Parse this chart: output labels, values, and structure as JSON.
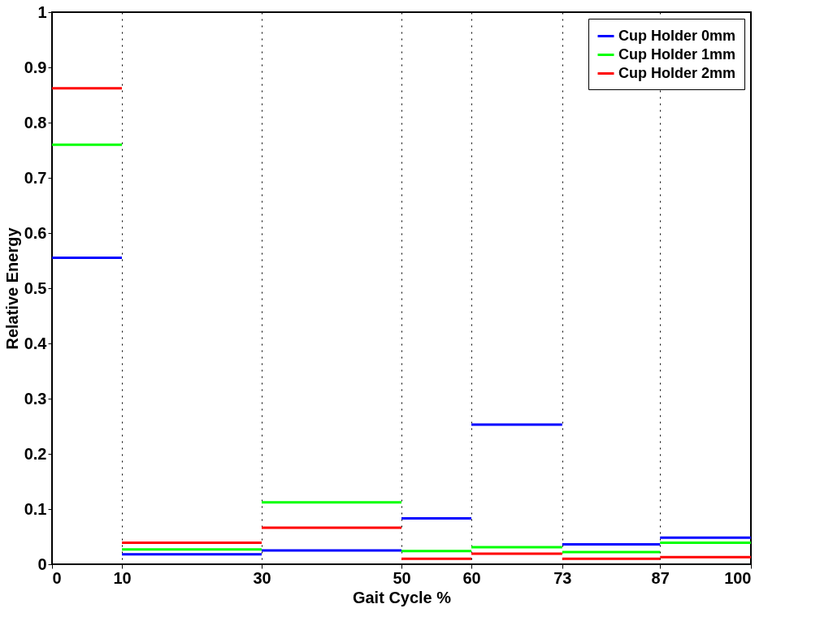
{
  "chart_data": {
    "type": "step",
    "xlabel": "Gait Cycle %",
    "ylabel": "Relative Energy",
    "x": [
      0,
      10,
      30,
      50,
      60,
      73,
      87,
      100
    ],
    "series": [
      {
        "name": "Cup Holder 0mm",
        "color": "#0000ff",
        "values": [
          0.555,
          0.018,
          0.025,
          0.083,
          0.253,
          0.036,
          0.048,
          0.048
        ]
      },
      {
        "name": "Cup Holder 1mm",
        "color": "#00ff00",
        "values": [
          0.76,
          0.027,
          0.112,
          0.024,
          0.031,
          0.022,
          0.039,
          0.039
        ]
      },
      {
        "name": "Cup Holder 2mm",
        "color": "#ff0000",
        "values": [
          0.862,
          0.039,
          0.066,
          0.01,
          0.019,
          0.01,
          0.013,
          0.013
        ]
      }
    ],
    "xlim": [
      0,
      100
    ],
    "xticks": [
      0,
      10,
      30,
      50,
      60,
      73,
      87,
      100
    ],
    "ylim": [
      0,
      1
    ],
    "yticks": [
      0,
      0.1,
      0.2,
      0.3,
      0.4,
      0.5,
      0.6,
      0.7,
      0.8,
      0.9,
      1
    ],
    "grid": "x",
    "legend": "top right"
  }
}
